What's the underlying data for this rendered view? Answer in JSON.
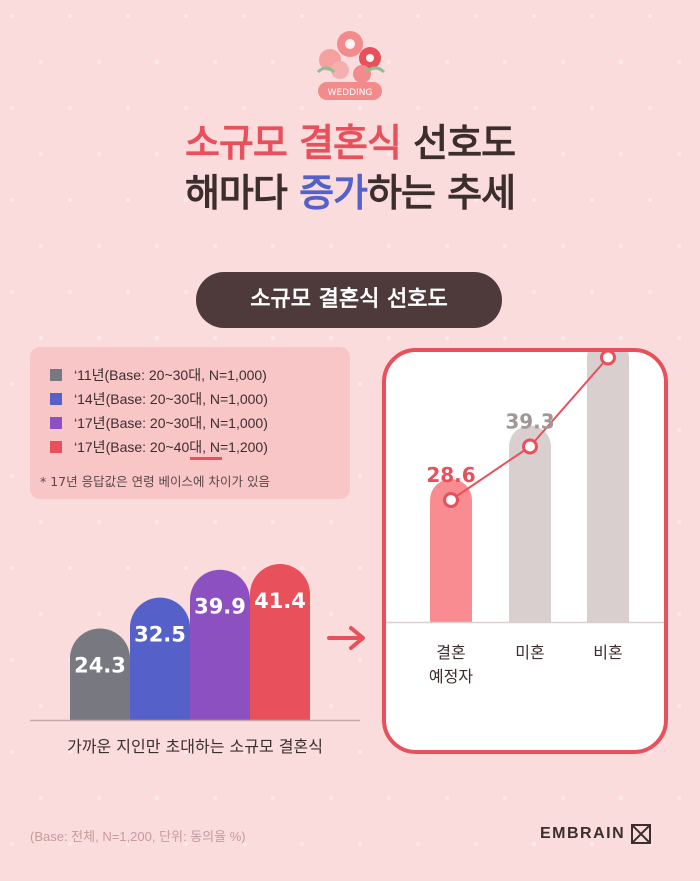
{
  "header": {
    "badge": "WEDDING",
    "title_line1_highlight": "소규모 결혼식",
    "title_line1_rest": " 선호도",
    "title_line2_pre": "해마다 ",
    "title_line2_highlight": "증가",
    "title_line2_rest": "하는 추세"
  },
  "section_title": "소규모 결혼식 선호도",
  "legend": {
    "items": [
      {
        "label": "‘11년(Base: 20~30대, N=1,000)",
        "color": "#777880"
      },
      {
        "label": "‘14년(Base: 20~30대, N=1,000)",
        "color": "#5560c8"
      },
      {
        "label": "‘17년(Base: 20~30대, N=1,000)",
        "color": "#8d50c0"
      },
      {
        "label": "‘17년(Base: 20~40대, N=1,200)",
        "color": "#e8505b"
      }
    ],
    "note": "* 17년 응답값은 연령 베이스에 차이가 있음"
  },
  "footnote": "(Base: 전체, N=1,200, 단위: 동의율 %)",
  "logo_text": "EMBRAIN",
  "colors": {
    "bg": "#fadcdc",
    "accent_red": "#e8505b",
    "accent_blue": "#5560c8",
    "dark": "#4e3a3a",
    "bar_pink": "#f88c90",
    "bar_gray": "#d9cfcf",
    "value_gray": "#a09898"
  },
  "chart_data": [
    {
      "type": "bar",
      "title": "가까운 지인만 초대하는 소규모 결혼식",
      "categories": [
        "‘11년",
        "‘14년",
        "‘17년",
        "‘17년"
      ],
      "values": [
        24.3,
        32.5,
        39.9,
        41.4
      ],
      "colors": [
        "#777880",
        "#5560c8",
        "#8d50c0",
        "#e8505b"
      ],
      "ylim": [
        0,
        60
      ],
      "grid": false
    },
    {
      "type": "bar",
      "title": "",
      "categories": [
        "결혼\n예정자",
        "미혼",
        "비혼"
      ],
      "values": [
        28.6,
        39.3,
        57.1
      ],
      "overlay": "line",
      "ylim": [
        0,
        60
      ],
      "grid": false
    }
  ]
}
